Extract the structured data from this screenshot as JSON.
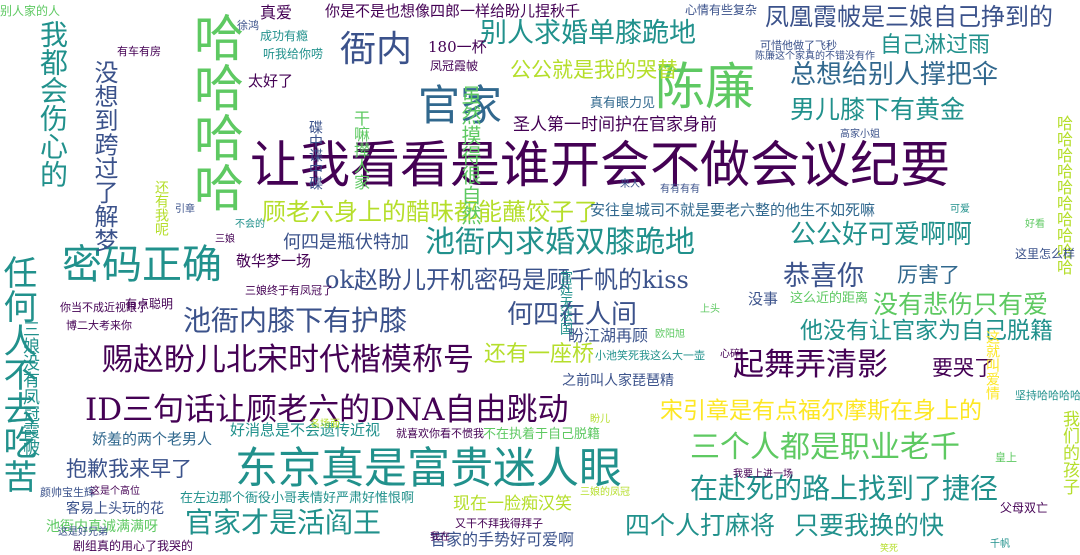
{
  "palette": {
    "purple": "#440154",
    "indigo": "#3b528b",
    "teal": "#21918c",
    "green": "#5ec962",
    "lime": "#b5de2b",
    "yellow": "#fde725",
    "blue": "#31688e",
    "dark_green": "#35b779"
  },
  "words": [
    {
      "text": "让我看看是谁开会不做会议纪要",
      "color": "#440154"
    },
    {
      "text": "东京真是富贵迷人眼",
      "color": "#21918c"
    },
    {
      "text": "ID三句话让顾老六的DNA自由跳动",
      "color": "#440154"
    },
    {
      "text": "赐赵盼儿北宋时代楷模称号",
      "color": "#440154"
    },
    {
      "text": "池衙内膝下有护膝",
      "color": "#3b528b"
    },
    {
      "text": "ok赵盼儿开机密码是顾千帆的kiss",
      "color": "#3b528b"
    },
    {
      "text": "密码正确",
      "color": "#21918c"
    },
    {
      "text": "池衙内求婚双膝跪地",
      "color": "#21918c"
    },
    {
      "text": "顾老六身上的醋味都能蘸饺子了",
      "color": "#b5de2b"
    },
    {
      "text": "官家",
      "color": "#31688e"
    },
    {
      "text": "陈廉",
      "color": "#5ec962"
    },
    {
      "text": "衙内",
      "color": "#3b528b"
    },
    {
      "text": "别人求婚单膝跪地",
      "color": "#21918c"
    },
    {
      "text": "公公就是我的哭替",
      "color": "#b5de2b"
    },
    {
      "text": "男儿膝下有黄金",
      "color": "#21918c"
    },
    {
      "text": "总想给别人撑把伞",
      "color": "#31688e"
    },
    {
      "text": "自己淋过雨",
      "color": "#21918c"
    },
    {
      "text": "凤凰霞帔是三娘自己挣到的",
      "color": "#3b528b"
    },
    {
      "text": "公公好可爱啊啊",
      "color": "#21918c"
    },
    {
      "text": "恭喜你",
      "color": "#3b528b"
    },
    {
      "text": "厉害了",
      "color": "#31688e"
    },
    {
      "text": "没有悲伤只有爱",
      "color": "#5ec962"
    },
    {
      "text": "他没有让官家为自己脱籍",
      "color": "#21918c"
    },
    {
      "text": "何四在人间",
      "color": "#3b528b"
    },
    {
      "text": "还有一座桥",
      "color": "#b5de2b"
    },
    {
      "text": "起舞弄清影",
      "color": "#440154"
    },
    {
      "text": "要哭了",
      "color": "#440154"
    },
    {
      "text": "宋引章是有点福尔摩斯在身上的",
      "color": "#fde725"
    },
    {
      "text": "三个人都是职业老千",
      "color": "#5ec962"
    },
    {
      "text": "在赴死的路上找到了捷径",
      "color": "#21918c"
    },
    {
      "text": "四个人打麻将",
      "color": "#21918c"
    },
    {
      "text": "只要我换的快",
      "color": "#21918c"
    },
    {
      "text": "官家才是活阎王",
      "color": "#21918c"
    },
    {
      "text": "抱歉我来早了",
      "color": "#3b528b"
    },
    {
      "text": "娇羞的两个老男人",
      "color": "#31688e"
    },
    {
      "text": "好消息是不会遗传近视",
      "color": "#21918c"
    },
    {
      "text": "现在一脸痴汉笑",
      "color": "#b5de2b"
    },
    {
      "text": "官家的手势好可爱啊",
      "color": "#3b528b"
    },
    {
      "text": "哈哈哈哈",
      "color": "#5ec962"
    },
    {
      "text": "哈哈哈哈哈哈哈哈哈哈",
      "color": "#b5de2b"
    },
    {
      "text": "何四是瓶伏特加",
      "color": "#3b528b"
    },
    {
      "text": "敬华梦一场",
      "color": "#440154"
    },
    {
      "text": "盼江湖再顾",
      "color": "#3b528b"
    },
    {
      "text": "我都会伤心的",
      "color": "#21918c"
    },
    {
      "text": "任何人不去吃苦",
      "color": "#21918c"
    },
    {
      "text": "三娘没有凤冠霞帔",
      "color": "#21918c"
    },
    {
      "text": "没想到跨过了解梦",
      "color": "#3b528b"
    },
    {
      "text": "我们的孩子",
      "color": "#b5de2b"
    },
    {
      "text": "180一杯",
      "color": "#440154"
    },
    {
      "text": "真爱",
      "color": "#440154"
    },
    {
      "text": "你是不是也想像四郎一样给盼儿捏秋千",
      "color": "#440154"
    },
    {
      "text": "心情有些复杂",
      "color": "#3b528b"
    },
    {
      "text": "圣人第一时间护在官家身前",
      "color": "#440154"
    },
    {
      "text": "安往皇城司不就是要老六整的他生不如死嘛",
      "color": "#31688e"
    },
    {
      "text": "真有眼力见",
      "color": "#31688e"
    },
    {
      "text": "虽然摸得很自然",
      "color": "#5ec962"
    },
    {
      "text": "太好了",
      "color": "#440154"
    },
    {
      "text": "干嘛撵人家",
      "color": "#5ec962"
    },
    {
      "text": "有点聪明",
      "color": "#440154"
    },
    {
      "text": "没事",
      "color": "#3b528b"
    },
    {
      "text": "这么近的距离",
      "color": "#5ec962"
    },
    {
      "text": "之前叫人家琵琶精",
      "color": "#3b528b"
    },
    {
      "text": "小池笑死我这么大一壶",
      "color": "#21918c"
    },
    {
      "text": "在左边那个衙役小哥表情好严肃好惟恨啊",
      "color": "#21918c"
    },
    {
      "text": "客易上头玩的花",
      "color": "#3b528b"
    },
    {
      "text": "池衙内真诚满满呀",
      "color": "#5ec962"
    },
    {
      "text": "剧组真的用心了我哭的",
      "color": "#440154"
    },
    {
      "text": "又干不拜我得拜子",
      "color": "#440154"
    },
    {
      "text": "不在执着于自己脱籍",
      "color": "#5ec962"
    },
    {
      "text": "就喜欢你看不惯我",
      "color": "#440154"
    },
    {
      "text": "父母双亡",
      "color": "#440154"
    },
    {
      "text": "宫廷无法国",
      "color": "#21918c"
    },
    {
      "text": "成功有瘾",
      "color": "#21918c"
    },
    {
      "text": "听我给你唠",
      "color": "#21918c"
    },
    {
      "text": "有车有房",
      "color": "#440154"
    },
    {
      "text": "碟中谍中碟",
      "color": "#3b528b"
    },
    {
      "text": "凤冠霞帔",
      "color": "#440154"
    },
    {
      "text": "徐鸿",
      "color": "#3b528b"
    },
    {
      "text": "可惜他做了飞秒",
      "color": "#3b528b"
    },
    {
      "text": "陈廉这个家真的不错没有作",
      "color": "#3b528b"
    },
    {
      "text": "我在",
      "color": "#440154"
    },
    {
      "text": "这里怎么样",
      "color": "#3b528b"
    },
    {
      "text": "坚持哈哈哈哈哈",
      "color": "#21918c"
    },
    {
      "text": "还有我呢",
      "color": "#b5de2b"
    },
    {
      "text": "你当不成近视眼了",
      "color": "#440154"
    },
    {
      "text": "博二大考来你",
      "color": "#440154"
    },
    {
      "text": "三娘终于有凤冠了",
      "color": "#440154"
    },
    {
      "text": "颜帅宝生辉",
      "color": "#3b528b"
    },
    {
      "text": "这是个高位",
      "color": "#440154"
    },
    {
      "text": "皇上",
      "color": "#5ec962"
    },
    {
      "text": "我要上进一场",
      "color": "#440154"
    },
    {
      "text": "有有有有",
      "color": "#3b528b"
    },
    {
      "text": "心碎",
      "color": "#440154"
    },
    {
      "text": "名场面",
      "color": "#b5de2b"
    },
    {
      "text": "别人家的人",
      "color": "#5ec962"
    },
    {
      "text": "这就叫爱情",
      "color": "#fde725"
    },
    {
      "text": "三娘的凤冠",
      "color": "#b5de2b"
    },
    {
      "text": "这是好兄弟",
      "color": "#3b528b"
    },
    {
      "text": "欧阳旭",
      "color": "#5ec962"
    },
    {
      "text": "高家小姐",
      "color": "#3b528b"
    },
    {
      "text": "不会的",
      "color": "#21918c"
    },
    {
      "text": "来人",
      "color": "#3b528b"
    },
    {
      "text": "上头",
      "color": "#5ec962"
    },
    {
      "text": "可爱",
      "color": "#21918c"
    },
    {
      "text": "好看",
      "color": "#5ec962"
    },
    {
      "text": "盼儿",
      "color": "#b5de2b"
    },
    {
      "text": "引章",
      "color": "#3b528b"
    },
    {
      "text": "三娘",
      "color": "#440154"
    },
    {
      "text": "千帆",
      "color": "#21918c"
    },
    {
      "text": "笑死",
      "color": "#b5de2b"
    }
  ]
}
